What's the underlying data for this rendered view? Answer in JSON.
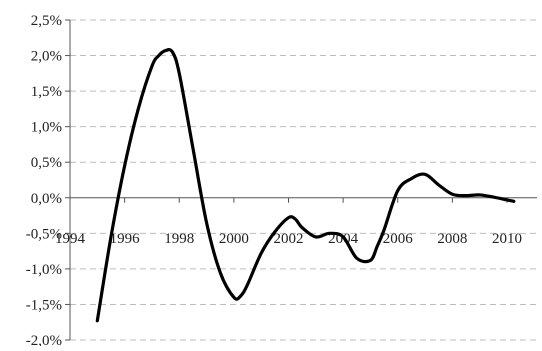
{
  "chart_data": {
    "type": "line",
    "title": "",
    "xlabel": "",
    "ylabel": "",
    "xlim": [
      1994,
      2010
    ],
    "ylim": [
      -2.0,
      2.5
    ],
    "x_ticks": [
      1994,
      1996,
      1998,
      2000,
      2002,
      2004,
      2006,
      2008,
      2010
    ],
    "x_tick_labels": [
      "1994",
      "1996",
      "1998",
      "2000",
      "2002",
      "2004",
      "2006",
      "2008",
      "2010"
    ],
    "y_ticks": [
      -2.0,
      -1.5,
      -1.0,
      -0.5,
      0.0,
      0.5,
      1.0,
      1.5,
      2.0,
      2.5
    ],
    "y_tick_labels": [
      "-2,0%",
      "-1,5%",
      "-1,0%",
      "-0,5%",
      "0,0%",
      "0,5%",
      "1,0%",
      "1,5%",
      "2,0%",
      "2,5%"
    ],
    "grid": "horizontal dashed",
    "legend": "none",
    "line_color": "#000000",
    "grid_color": "#bdbdbd",
    "axis_color": "#555555",
    "series": [
      {
        "x": [
          1995.0,
          1995.5,
          1996.0,
          1996.5,
          1997.0,
          1997.25,
          1997.5,
          1997.75,
          1998.0,
          1998.5,
          1999.0,
          1999.5,
          2000.0,
          2000.25,
          2000.5,
          2001.0,
          2001.5,
          2002.0,
          2002.25,
          2002.5,
          2003.0,
          2003.5,
          2004.0,
          2004.5,
          2005.0,
          2005.25,
          2005.5,
          2006.0,
          2006.5,
          2007.0,
          2007.5,
          2008.0,
          2008.5,
          2009.0,
          2009.5,
          2010.0,
          2010.25
        ],
        "values": [
          -1.73,
          -0.55,
          0.45,
          1.25,
          1.85,
          2.0,
          2.07,
          2.05,
          1.75,
          0.7,
          -0.35,
          -1.05,
          -1.4,
          -1.38,
          -1.22,
          -0.78,
          -0.48,
          -0.28,
          -0.3,
          -0.42,
          -0.55,
          -0.5,
          -0.55,
          -0.85,
          -0.88,
          -0.68,
          -0.45,
          0.1,
          0.27,
          0.33,
          0.18,
          0.05,
          0.03,
          0.04,
          0.01,
          -0.03,
          -0.05
        ]
      }
    ]
  }
}
